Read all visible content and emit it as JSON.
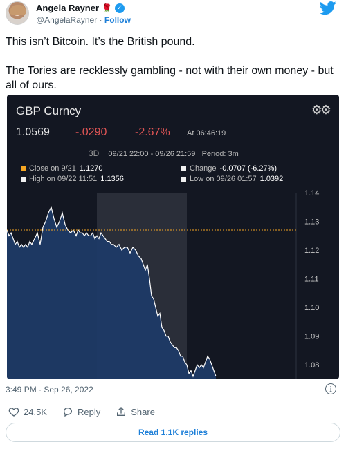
{
  "author": {
    "name": "Angela Rayner",
    "emoji": "🌹",
    "handle": "@AngelaRayner",
    "separator": "·",
    "follow_label": "Follow"
  },
  "tweet": {
    "line1": "This isn’t Bitcoin. It’s the British pound.",
    "line2": "The Tories are recklessly gambling - not with their own money - but all of ours."
  },
  "card": {
    "title": "GBP Curncy",
    "price": "1.0569",
    "change": "-.0290",
    "change_pct": "-2.67%",
    "time": "At 06:46:19",
    "period_tag": "3D",
    "range": "09/21 22:00 - 09/26 21:59",
    "period": "Period: 3m",
    "close_label": "Close on 9/21",
    "close_value": "1.1270",
    "change_label": "Change",
    "change_value": "-0.0707 (-6.27%)",
    "high_label": "High on 09/22 11:51",
    "high_value": "1.1356",
    "low_label": "Low on 09/26 01:57",
    "low_value": "1.0392"
  },
  "chart_data": {
    "type": "area",
    "title": "GBP Curncy",
    "y_ticks": [
      "1.14",
      "1.13",
      "1.12",
      "1.11",
      "1.10",
      "1.09",
      "1.08"
    ],
    "ylim": [
      1.075,
      1.14
    ],
    "reference_line": 1.127,
    "x": [
      0,
      3,
      6,
      9,
      12,
      15,
      18,
      21,
      24,
      27,
      30,
      33,
      36,
      40,
      44,
      48,
      52,
      56,
      60,
      64,
      68,
      72,
      76,
      80,
      84,
      88,
      92,
      96,
      100,
      103,
      106,
      109,
      112,
      115,
      118,
      121,
      124,
      127,
      130,
      133,
      136,
      139,
      142,
      145,
      148,
      151,
      154
    ],
    "values": [
      1.127,
      1.125,
      1.126,
      1.124,
      1.122,
      1.123,
      1.121,
      1.122,
      1.121,
      1.122,
      1.121,
      1.123,
      1.122,
      1.124,
      1.126,
      1.122,
      1.128,
      1.13,
      1.133,
      1.135,
      1.131,
      1.128,
      1.13,
      1.133,
      1.129,
      1.127,
      1.126,
      1.127,
      1.125,
      1.127,
      1.126,
      1.126,
      1.125,
      1.126,
      1.125,
      1.125,
      1.126,
      1.124,
      1.125,
      1.124,
      1.126,
      1.125,
      1.124,
      1.123,
      1.123,
      1.122,
      1.122
    ],
    "x2": [
      154,
      158,
      162,
      166,
      170,
      174,
      178,
      182,
      186,
      190,
      194,
      197,
      200,
      203,
      206,
      209,
      212,
      215,
      218,
      221,
      224,
      227,
      230,
      233,
      236,
      239,
      242,
      245,
      248,
      251,
      254,
      257,
      260,
      263,
      266,
      269,
      272,
      275,
      278,
      281,
      284,
      287,
      290,
      293,
      296,
      299,
      302
    ],
    "values2": [
      1.122,
      1.121,
      1.122,
      1.12,
      1.121,
      1.121,
      1.119,
      1.121,
      1.12,
      1.118,
      1.117,
      1.115,
      1.113,
      1.115,
      1.11,
      1.104,
      1.103,
      1.1,
      1.097,
      1.098,
      1.093,
      1.092,
      1.09,
      1.09,
      1.088,
      1.087,
      1.086,
      1.086,
      1.085,
      1.083,
      1.083,
      1.081,
      1.08,
      1.077,
      1.078,
      1.076,
      1.078,
      1.08,
      1.079,
      1.08,
      1.079,
      1.081,
      1.083,
      1.082,
      1.08,
      1.078,
      1.076
    ],
    "colors": {
      "line": "#ffffff",
      "fill": "#1e3a66",
      "reference": "#f5a623",
      "highlight": "#2a2e39"
    }
  },
  "meta": {
    "timestamp": "3:49 PM · Sep 26, 2022"
  },
  "actions": {
    "likes": "24.5K",
    "reply_label": "Reply",
    "share_label": "Share",
    "read_replies": "Read 1.1K replies"
  },
  "icons": [
    "verified-icon",
    "twitter-logo-icon",
    "gear-icon",
    "info-icon",
    "heart-icon",
    "reply-icon",
    "share-icon"
  ]
}
